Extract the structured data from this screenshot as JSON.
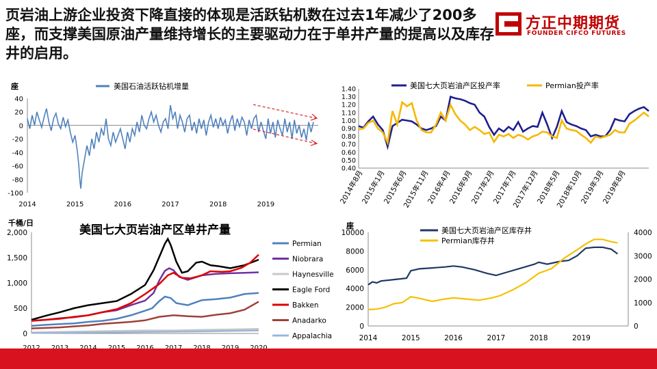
{
  "headline": "页岩油上游企业投资下降直接的体现是活跃钻机数在过去1年减少了200多座，而支撑美国原油产量维持增长的主要驱动力在于单井产量的提高以及库存井的启用。",
  "logo": {
    "cn": "方正中期期货",
    "en": "FOUNDER CIFCO FUTURES",
    "color": "#c00000"
  },
  "colors": {
    "footer": "#d9121f",
    "rig": "#4f81bd",
    "navy": "#1f1f8f",
    "gold": "#f5b800",
    "arrow": "#e03030"
  },
  "chart_data": [
    {
      "id": "rig-change",
      "type": "line",
      "title": "",
      "ylabel": "座",
      "xlabel": "",
      "ylim": [
        -100,
        40
      ],
      "yticks": [
        40,
        20,
        0,
        -20,
        -40,
        -60,
        -80,
        -100
      ],
      "xtick_labels": [
        "2014",
        "2015",
        "2016",
        "2017",
        "2018",
        "2019"
      ],
      "xlim": [
        2014.0,
        2020.1
      ],
      "legend": "top-center",
      "grid": false,
      "series": [
        {
          "name": "美国石油活跃钻机增量",
          "color": "#4f81bd",
          "x": [
            2014.0,
            2014.05,
            2014.1,
            2014.15,
            2014.2,
            2014.25,
            2014.3,
            2014.35,
            2014.4,
            2014.45,
            2014.5,
            2014.55,
            2014.6,
            2014.65,
            2014.7,
            2014.75,
            2014.8,
            2014.85,
            2014.9,
            2014.95,
            2015.0,
            2015.05,
            2015.08,
            2015.1,
            2015.12,
            2015.15,
            2015.2,
            2015.25,
            2015.3,
            2015.35,
            2015.4,
            2015.45,
            2015.5,
            2015.55,
            2015.6,
            2015.65,
            2015.7,
            2015.75,
            2015.8,
            2015.85,
            2015.9,
            2015.95,
            2016.0,
            2016.05,
            2016.1,
            2016.15,
            2016.2,
            2016.25,
            2016.3,
            2016.35,
            2016.4,
            2016.45,
            2016.5,
            2016.55,
            2016.6,
            2016.65,
            2016.7,
            2016.75,
            2016.8,
            2016.85,
            2016.9,
            2016.95,
            2017.0,
            2017.05,
            2017.1,
            2017.15,
            2017.2,
            2017.25,
            2017.3,
            2017.35,
            2017.4,
            2017.45,
            2017.5,
            2017.55,
            2017.6,
            2017.65,
            2017.7,
            2017.75,
            2017.8,
            2017.85,
            2017.9,
            2017.95,
            2018.0,
            2018.05,
            2018.1,
            2018.15,
            2018.2,
            2018.25,
            2018.3,
            2018.35,
            2018.4,
            2018.45,
            2018.5,
            2018.55,
            2018.6,
            2018.65,
            2018.7,
            2018.75,
            2018.8,
            2018.85,
            2018.9,
            2018.95,
            2019.0,
            2019.05,
            2019.1,
            2019.15,
            2019.2,
            2019.25,
            2019.3,
            2019.35,
            2019.4,
            2019.45,
            2019.5,
            2019.55,
            2019.6,
            2019.65,
            2019.7,
            2019.75,
            2019.8,
            2019.85,
            2019.9,
            2019.95,
            2020.0
          ],
          "y": [
            10,
            -5,
            15,
            0,
            20,
            8,
            -3,
            12,
            25,
            5,
            -8,
            10,
            18,
            2,
            -5,
            12,
            -2,
            8,
            -10,
            -25,
            -15,
            -40,
            -60,
            -80,
            -94,
            -70,
            -50,
            -30,
            -45,
            -20,
            -35,
            -10,
            -25,
            -5,
            -15,
            10,
            -20,
            -30,
            -10,
            -25,
            -15,
            -5,
            -20,
            -35,
            -10,
            -25,
            -5,
            -15,
            5,
            -10,
            15,
            0,
            -5,
            10,
            20,
            5,
            15,
            0,
            -10,
            5,
            10,
            -5,
            30,
            10,
            20,
            -5,
            15,
            5,
            -10,
            10,
            15,
            -8,
            5,
            -12,
            10,
            -5,
            8,
            -15,
            5,
            15,
            -3,
            10,
            -5,
            12,
            0,
            8,
            -12,
            5,
            15,
            -8,
            10,
            -2,
            12,
            5,
            -15,
            8,
            -5,
            10,
            15,
            -10,
            5,
            -8,
            -20,
            10,
            -12,
            5,
            -18,
            8,
            -5,
            -15,
            10,
            -10,
            5,
            -20,
            8,
            -12,
            0,
            -18,
            -5,
            -22,
            5,
            -10,
            5
          ]
        }
      ],
      "annotations": [
        {
          "type": "trend-arrows",
          "shape": "converging",
          "color": "#e03030"
        }
      ]
    },
    {
      "id": "rig-productivity",
      "type": "line",
      "title": "",
      "ylabel": "",
      "xlabel": "",
      "ylim": [
        0.4,
        1.4
      ],
      "yticks": [
        "1.40",
        "1.30",
        "1.20",
        "1.10",
        "1.00",
        "0.90",
        "0.80",
        "0.70",
        "0.60",
        "0.50",
        "0.40"
      ],
      "xtick_labels": [
        "2014年8月",
        "2015年1月",
        "2015年6月",
        "2015年11月",
        "2016年4月",
        "2016年9月",
        "2017年2月",
        "2017年7月",
        "2017年12月",
        "2018年5月",
        "2018年10月",
        "2019年3月",
        "2019年8月"
      ],
      "legend": "top",
      "grid": false,
      "series": [
        {
          "name": "美国七大页岩油产区投产率",
          "color": "#1f1f8f",
          "y": [
            0.93,
            0.91,
            0.99,
            1.05,
            0.95,
            0.88,
            0.67,
            0.93,
            0.97,
            1.01,
            1.0,
            0.99,
            0.95,
            0.9,
            0.88,
            0.9,
            0.93,
            1.05,
            1.0,
            1.3,
            1.28,
            1.27,
            1.25,
            1.22,
            1.2,
            1.1,
            1.05,
            0.92,
            0.82,
            0.9,
            0.86,
            0.92,
            0.88,
            0.98,
            0.86,
            0.9,
            0.93,
            0.92,
            1.1,
            0.95,
            0.78,
            0.92,
            1.12,
            0.98,
            0.95,
            0.93,
            0.9,
            0.88,
            0.8,
            0.82,
            0.8,
            0.8,
            0.88,
            1.02,
            1.0,
            0.99,
            1.08,
            1.12,
            1.15,
            1.17,
            1.12
          ]
        },
        {
          "name": "Permian投产率",
          "color": "#f5b800",
          "y": [
            0.89,
            0.9,
            0.97,
            1.0,
            0.9,
            0.85,
            0.72,
            1.12,
            0.95,
            1.23,
            1.18,
            1.22,
            1.0,
            0.88,
            0.85,
            0.85,
            0.95,
            1.1,
            1.0,
            1.2,
            1.08,
            1.0,
            0.95,
            0.88,
            0.92,
            0.88,
            0.83,
            0.85,
            0.73,
            0.82,
            0.8,
            0.83,
            0.78,
            0.82,
            0.8,
            0.76,
            0.8,
            0.82,
            0.86,
            0.85,
            0.8,
            0.78,
            1.0,
            0.9,
            0.88,
            0.87,
            0.82,
            0.78,
            0.72,
            0.8,
            0.78,
            0.8,
            0.82,
            0.88,
            0.85,
            0.85,
            0.96,
            1.0,
            1.05,
            1.1,
            1.05
          ]
        }
      ]
    },
    {
      "id": "well-output",
      "type": "line",
      "title": "美国七大页岩油产区单井产量",
      "ylabel": "千桶/日",
      "xlabel": "",
      "ylim": [
        0,
        2000
      ],
      "yticks": [
        "2,000",
        "1,500",
        "1,000",
        "500",
        "0"
      ],
      "xtick_labels": [
        "2012",
        "2013",
        "2014",
        "2015",
        "2016",
        "2017",
        "2018",
        "2019",
        "2020"
      ],
      "xlim": [
        2012.0,
        2020.0
      ],
      "legend": "right",
      "grid": false,
      "series": [
        {
          "name": "Permian",
          "color": "#4f81bd",
          "x": [
            2012,
            2012.5,
            2013,
            2013.5,
            2014,
            2014.5,
            2015,
            2015.5,
            2016,
            2016.25,
            2016.5,
            2016.7,
            2016.9,
            2017.1,
            2017.5,
            2018,
            2018.5,
            2019,
            2019.5,
            2020
          ],
          "y": [
            150,
            170,
            185,
            200,
            230,
            250,
            290,
            360,
            450,
            500,
            640,
            730,
            700,
            600,
            560,
            660,
            680,
            710,
            780,
            800
          ]
        },
        {
          "name": "Niobrara",
          "color": "#7030a0",
          "x": [
            2012,
            2012.5,
            2013,
            2013.5,
            2014,
            2014.5,
            2015,
            2015.5,
            2016,
            2016.3,
            2016.5,
            2016.7,
            2016.85,
            2017,
            2017.2,
            2017.5,
            2018,
            2018.5,
            2019,
            2019.5,
            2020
          ],
          "y": [
            250,
            270,
            300,
            320,
            360,
            420,
            460,
            560,
            650,
            800,
            1050,
            1240,
            1290,
            1250,
            1120,
            1060,
            1150,
            1180,
            1190,
            1200,
            1210
          ]
        },
        {
          "name": "Haynesville",
          "color": "#c8c8c8",
          "x": [
            2012,
            2013,
            2014,
            2015,
            2016,
            2017,
            2018,
            2019,
            2020
          ],
          "y": [
            20,
            30,
            40,
            50,
            60,
            60,
            70,
            80,
            90
          ]
        },
        {
          "name": "Eagle Ford",
          "color": "#000000",
          "x": [
            2012,
            2012.5,
            2013,
            2013.5,
            2014,
            2014.5,
            2015,
            2015.5,
            2016,
            2016.3,
            2016.55,
            2016.7,
            2016.8,
            2016.9,
            2017.1,
            2017.3,
            2017.5,
            2017.8,
            2018,
            2018.3,
            2018.6,
            2019,
            2019.5,
            2020
          ],
          "y": [
            270,
            350,
            420,
            500,
            560,
            600,
            640,
            780,
            960,
            1250,
            1580,
            1780,
            1870,
            1750,
            1420,
            1200,
            1230,
            1400,
            1420,
            1350,
            1330,
            1290,
            1350,
            1460
          ]
        },
        {
          "name": "Bakken",
          "color": "#e00000",
          "x": [
            2012,
            2012.5,
            2013,
            2013.5,
            2014,
            2014.5,
            2015,
            2015.5,
            2016,
            2016.5,
            2016.8,
            2017,
            2017.3,
            2017.6,
            2018,
            2018.3,
            2018.7,
            2019,
            2019.4,
            2019.7,
            2020
          ],
          "y": [
            250,
            270,
            290,
            330,
            360,
            420,
            480,
            600,
            780,
            980,
            1150,
            1200,
            1100,
            1090,
            1150,
            1230,
            1220,
            1230,
            1300,
            1400,
            1560
          ]
        },
        {
          "name": "Anadarko",
          "color": "#a0403a",
          "x": [
            2012,
            2012.5,
            2013,
            2013.5,
            2014,
            2014.5,
            2015,
            2015.5,
            2016,
            2016.5,
            2017,
            2017.5,
            2018,
            2018.5,
            2019,
            2019.5,
            2020
          ],
          "y": [
            100,
            110,
            120,
            140,
            160,
            190,
            210,
            230,
            260,
            330,
            360,
            340,
            330,
            370,
            400,
            470,
            630
          ]
        },
        {
          "name": "Appalachia",
          "color": "#9cb6d9",
          "x": [
            2012,
            2013,
            2014,
            2015,
            2016,
            2017,
            2018,
            2019,
            2020
          ],
          "y": [
            10,
            15,
            20,
            25,
            30,
            35,
            40,
            50,
            60
          ]
        }
      ]
    },
    {
      "id": "duc-wells",
      "type": "line",
      "title": "",
      "ylabel": "座",
      "xlabel": "",
      "ylim": [
        0,
        10000
      ],
      "yticks": [
        "10000",
        "8000",
        "6000",
        "4000",
        "2000",
        "0"
      ],
      "y2lim": [
        0,
        4000
      ],
      "y2ticks": [
        "4000",
        "3000",
        "2000",
        "1000",
        "0"
      ],
      "xtick_labels": [
        "2014",
        "2015",
        "2016",
        "2017",
        "2018",
        "2019"
      ],
      "xlim": [
        2014.0,
        2020.1
      ],
      "legend": "top-left",
      "grid": false,
      "series": [
        {
          "name": "美国七大页岩油产区库存井",
          "color": "#1f3864",
          "axis": "left",
          "x": [
            2014,
            2014.1,
            2014.2,
            2014.3,
            2014.5,
            2014.7,
            2014.9,
            2015,
            2015.2,
            2015.5,
            2015.8,
            2016,
            2016.2,
            2016.5,
            2016.8,
            2017,
            2017.3,
            2017.6,
            2017.9,
            2018,
            2018.2,
            2018.5,
            2018.7,
            2018.9,
            2019.1,
            2019.3,
            2019.5,
            2019.7,
            2019.85
          ],
          "y": [
            4400,
            4700,
            4600,
            4800,
            4900,
            5000,
            5100,
            5900,
            6100,
            6200,
            6300,
            6400,
            6300,
            6000,
            5600,
            5400,
            5800,
            6200,
            6600,
            6800,
            6600,
            6900,
            7000,
            7500,
            8300,
            8400,
            8400,
            8200,
            7700
          ]
        },
        {
          "name": "Permian库存井",
          "color": "#f5c000",
          "axis": "right",
          "x": [
            2014,
            2014.2,
            2014.4,
            2014.6,
            2014.8,
            2015,
            2015.2,
            2015.5,
            2015.8,
            2016,
            2016.3,
            2016.6,
            2016.9,
            2017.1,
            2017.4,
            2017.7,
            2018,
            2018.3,
            2018.6,
            2018.9,
            2019.1,
            2019.3,
            2019.5,
            2019.7,
            2019.85
          ],
          "y": [
            700,
            720,
            800,
            950,
            1000,
            1250,
            1180,
            1050,
            1150,
            1200,
            1150,
            1100,
            1200,
            1300,
            1550,
            1850,
            2250,
            2450,
            2900,
            3250,
            3500,
            3700,
            3700,
            3600,
            3550
          ]
        }
      ]
    }
  ]
}
